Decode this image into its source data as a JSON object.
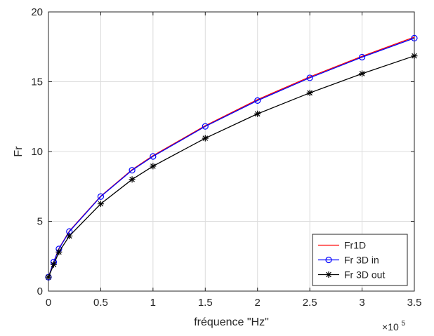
{
  "chart_data": {
    "type": "line",
    "xlabel": "fréquence \"Hz\"",
    "ylabel": "Fr",
    "x_exponent_label": "×10",
    "x_exponent_power": "5",
    "xlim": [
      0,
      350000
    ],
    "ylim": [
      0,
      20
    ],
    "xticks": [
      0,
      50000,
      100000,
      150000,
      200000,
      250000,
      300000,
      350000
    ],
    "xtick_labels": [
      "0",
      "0.5",
      "1",
      "1.5",
      "2",
      "2.5",
      "3",
      "3.5"
    ],
    "yticks": [
      0,
      5,
      10,
      15,
      20
    ],
    "ytick_labels": [
      "0",
      "5",
      "10",
      "15",
      "20"
    ],
    "grid": true,
    "legend_position": "bottom-right",
    "x": [
      0,
      5000,
      10000,
      20000,
      50000,
      80000,
      100000,
      150000,
      200000,
      250000,
      300000,
      350000
    ],
    "series": [
      {
        "name": "Fr1D",
        "color": "#ff0000",
        "marker": "none",
        "values": [
          1.0,
          2.1,
          3.05,
          4.3,
          6.8,
          8.7,
          9.7,
          11.85,
          13.72,
          15.35,
          16.82,
          18.2
        ]
      },
      {
        "name": "Fr 3D in",
        "color": "#0000ff",
        "marker": "circle",
        "values": [
          1.0,
          2.08,
          3.02,
          4.27,
          6.77,
          8.66,
          9.65,
          11.8,
          13.65,
          15.28,
          16.76,
          18.12
        ]
      },
      {
        "name": "Fr 3D out",
        "color": "#000000",
        "marker": "asterisk",
        "values": [
          1.0,
          1.9,
          2.8,
          3.95,
          6.25,
          8.0,
          8.95,
          10.95,
          12.7,
          14.2,
          15.58,
          16.85
        ]
      }
    ]
  }
}
